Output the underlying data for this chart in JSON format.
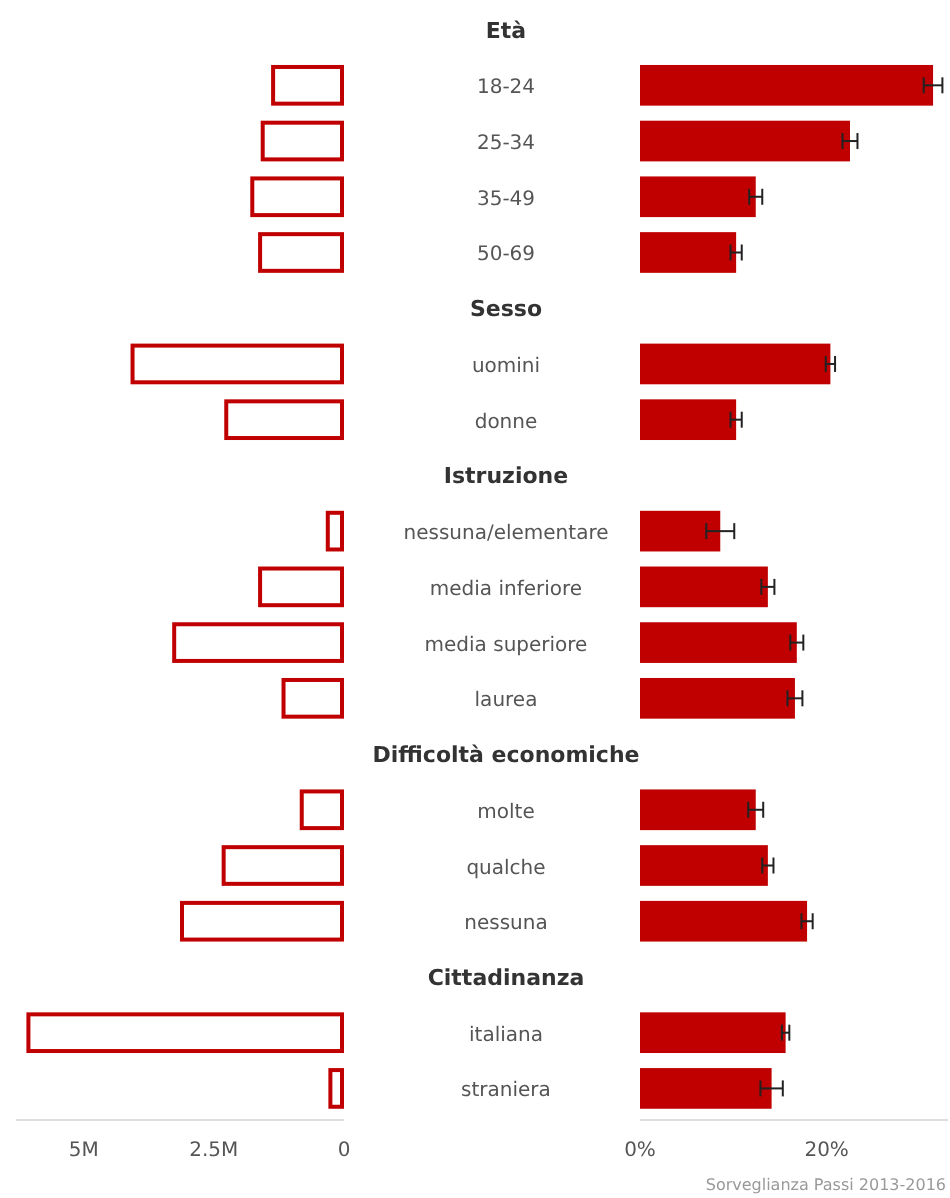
{
  "chart_data": [
    {
      "type": "bar",
      "orientation": "horizontal",
      "categories": [
        "Età",
        "18-24",
        "25-34",
        "35-49",
        "50-69",
        "Sesso",
        "uomini",
        "donne",
        "Istruzione",
        "nessuna/elementare",
        "media inferiore",
        "media superiore",
        "laurea",
        "Difficoltà economiche",
        "molte",
        "qualche",
        "nessuna",
        "Cittadinanza",
        "italiana",
        "straniera"
      ],
      "values": [
        null,
        1400000,
        1600000,
        1800000,
        1650000,
        null,
        4100000,
        2300000,
        null,
        350000,
        1650000,
        3300000,
        1200000,
        null,
        850000,
        2350000,
        3150000,
        null,
        6100000,
        300000
      ],
      "color": "#c00000",
      "xlim": [
        6300000,
        0
      ],
      "xticks": [
        {
          "value": 5000000,
          "label": "5M"
        },
        {
          "value": 2500000,
          "label": "2.5M"
        },
        0
      ]
    },
    {
      "type": "bar",
      "orientation": "horizontal",
      "categories": [
        null,
        null,
        null,
        null,
        null,
        null,
        null,
        null,
        null,
        null,
        null,
        null,
        null,
        null,
        null,
        null,
        null,
        null,
        null,
        null
      ],
      "values": [
        null,
        31.4,
        22.5,
        12.4,
        10.3,
        null,
        20.4,
        10.3,
        null,
        8.6,
        13.7,
        16.8,
        16.6,
        null,
        12.4,
        13.7,
        17.9,
        null,
        15.6,
        14.1
      ],
      "errors": [
        null,
        1,
        0.8,
        0.7,
        0.6,
        null,
        0.5,
        0.6,
        null,
        1.5,
        0.7,
        0.7,
        0.8,
        null,
        0.8,
        0.6,
        0.6,
        null,
        0.4,
        1.2
      ],
      "color": "#c00000",
      "xlim": [
        0,
        33
      ],
      "xticks": [
        {
          "value": 0,
          "label": "0%"
        },
        {
          "value": 20,
          "label": "20%"
        }
      ],
      "tick_labels": "x",
      "annotations": [
        "Sorveglianza Passi 2013-2016"
      ]
    }
  ]
}
